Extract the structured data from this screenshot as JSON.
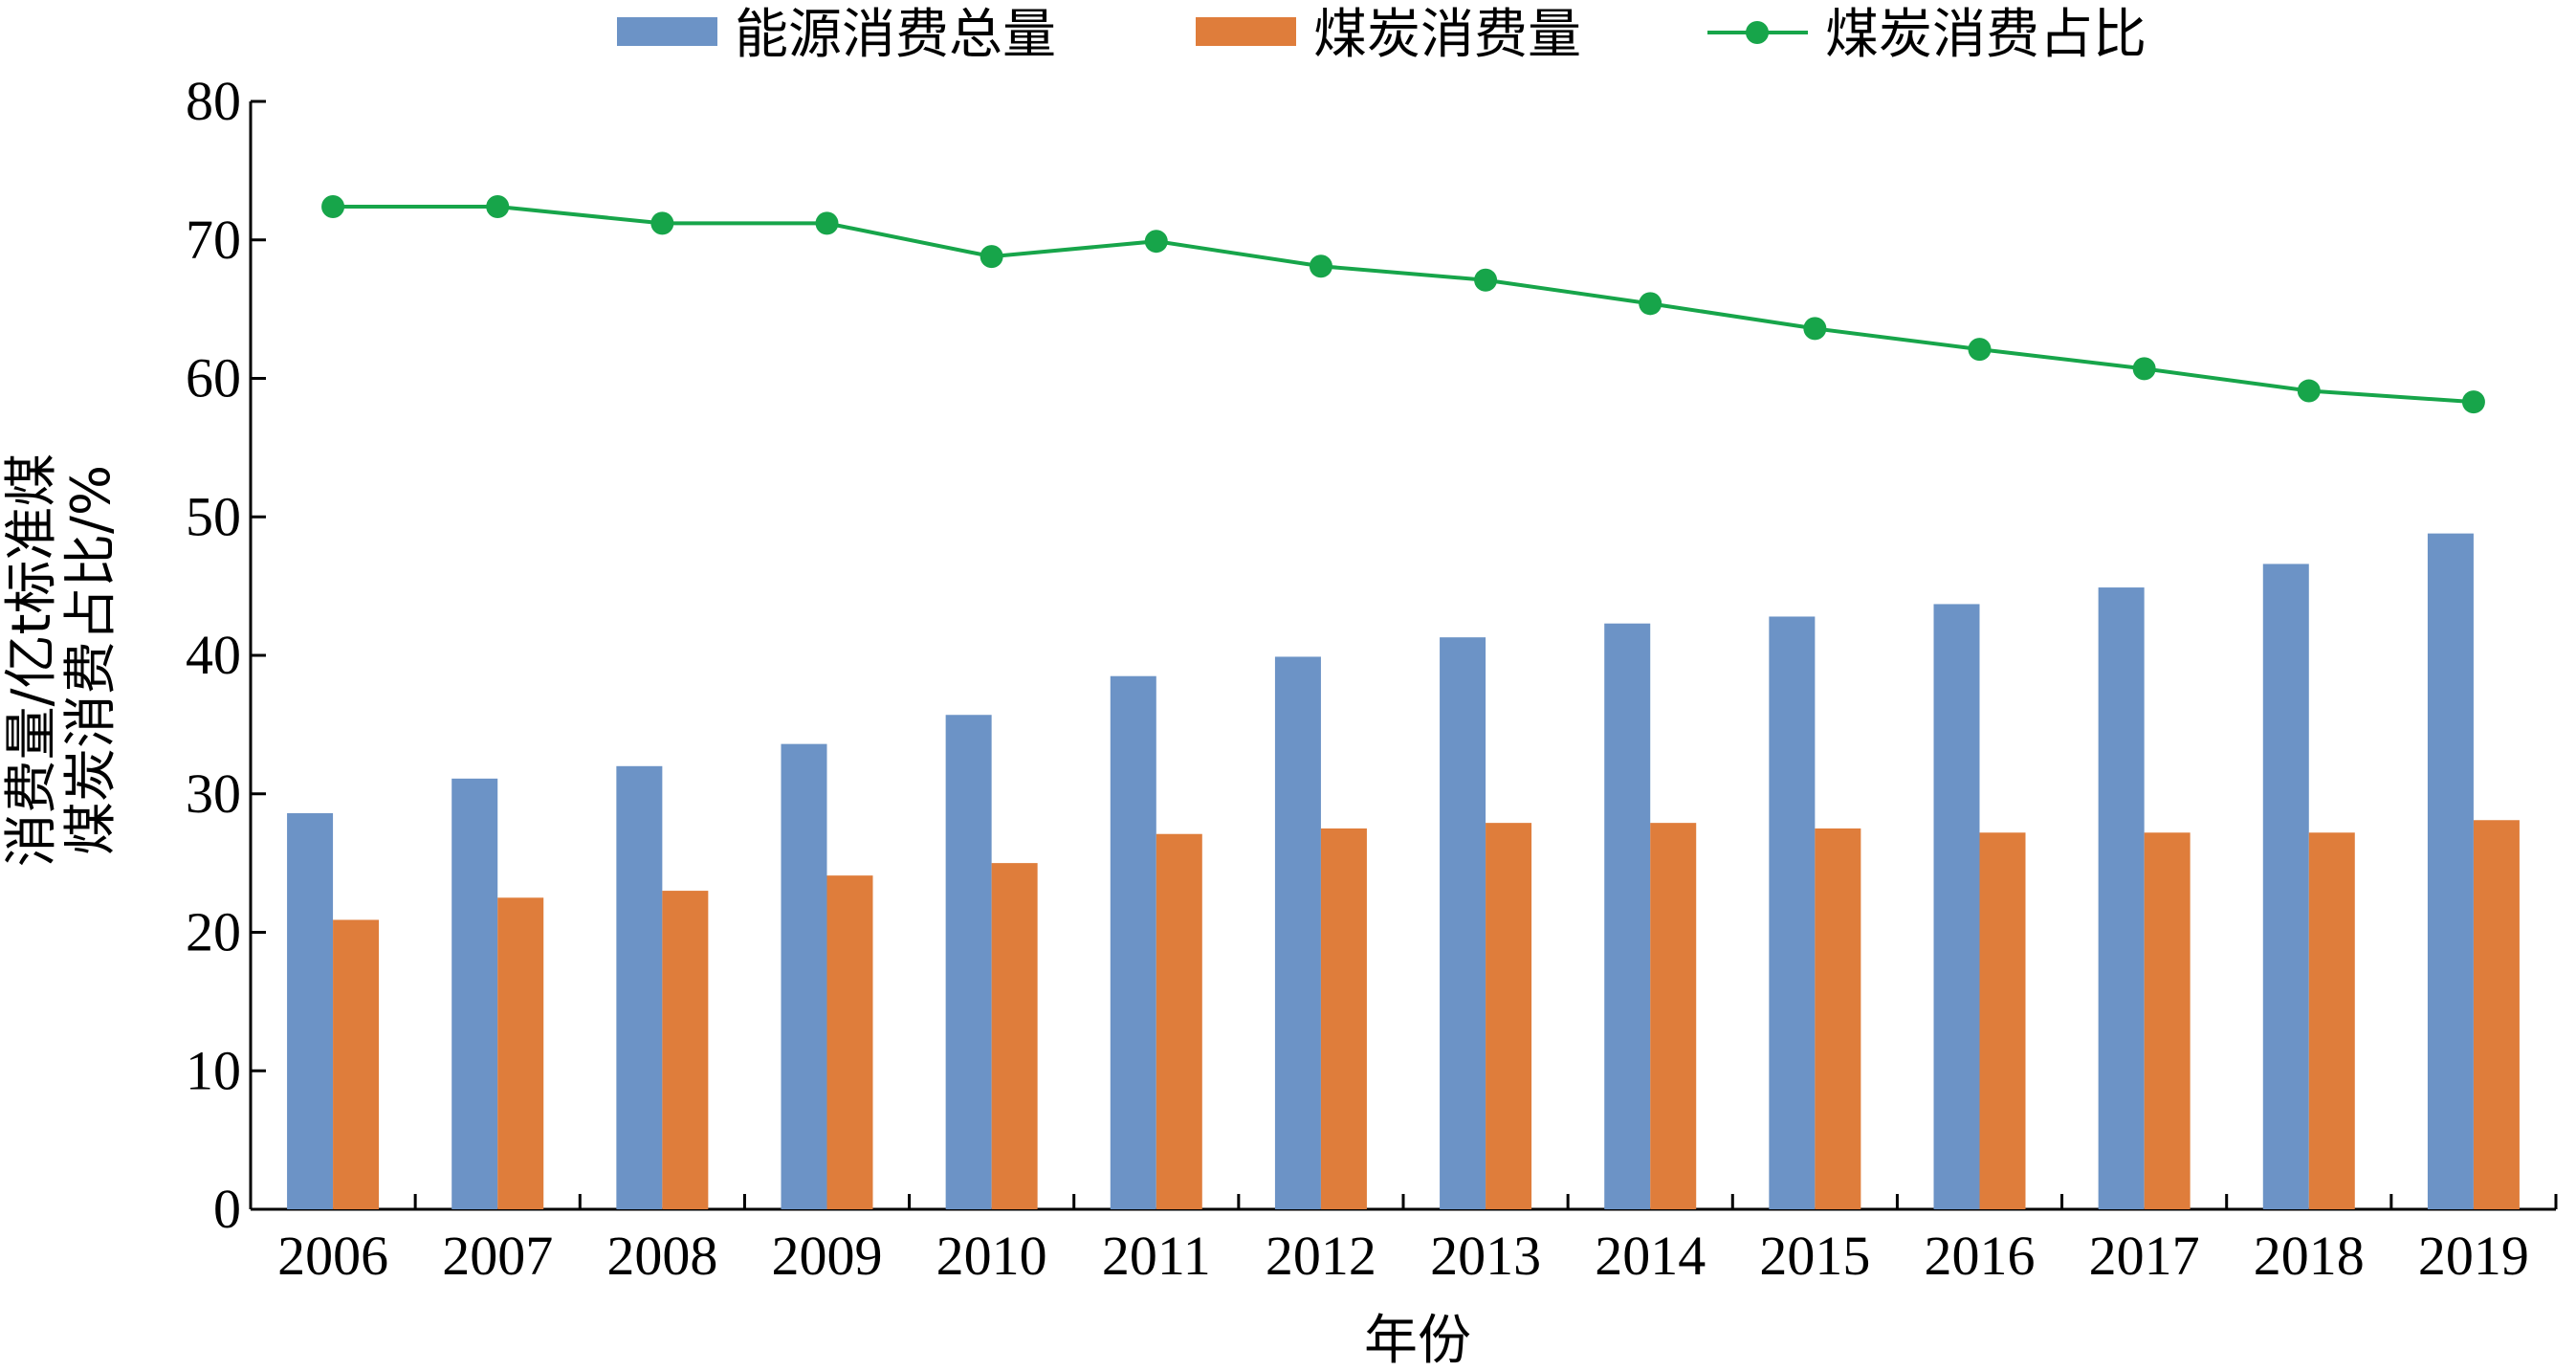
{
  "colors": {
    "energy_total": "#6c93c6",
    "coal": "#df7d3b",
    "coal_share": "#17a54a",
    "axis": "#000000"
  },
  "legend": {
    "energy_total": "能源消费总量",
    "coal": "煤炭消费量",
    "coal_share": "煤炭消费占比"
  },
  "chart_data": {
    "type": "bar",
    "categories": [
      "2006",
      "2007",
      "2008",
      "2009",
      "2010",
      "2011",
      "2012",
      "2013",
      "2014",
      "2015",
      "2016",
      "2017",
      "2018",
      "2019"
    ],
    "series": [
      {
        "name": "能源消费总量",
        "type": "bar",
        "values": [
          28.6,
          31.1,
          32.0,
          33.6,
          35.7,
          38.5,
          39.9,
          41.3,
          42.3,
          42.8,
          43.7,
          44.9,
          46.6,
          48.8
        ]
      },
      {
        "name": "煤炭消费量",
        "type": "bar",
        "values": [
          20.9,
          22.5,
          23.0,
          24.1,
          25.0,
          27.1,
          27.5,
          27.9,
          27.9,
          27.5,
          27.2,
          27.2,
          27.2,
          28.1
        ]
      },
      {
        "name": "煤炭消费占比",
        "type": "line",
        "marker": "circle",
        "values": [
          72.4,
          72.4,
          71.2,
          71.2,
          68.8,
          69.9,
          68.1,
          67.1,
          65.4,
          63.6,
          62.1,
          60.7,
          59.1,
          58.3
        ]
      }
    ],
    "xlabel": "年份",
    "ylabel_lines": [
      "消费量/亿t标准煤",
      "煤炭消费占比/%"
    ],
    "ylim": [
      0,
      80
    ],
    "yticks": [
      "0",
      "10",
      "20",
      "30",
      "40",
      "50",
      "60",
      "70",
      "80"
    ],
    "grid": false,
    "legend_position": "top-center"
  }
}
